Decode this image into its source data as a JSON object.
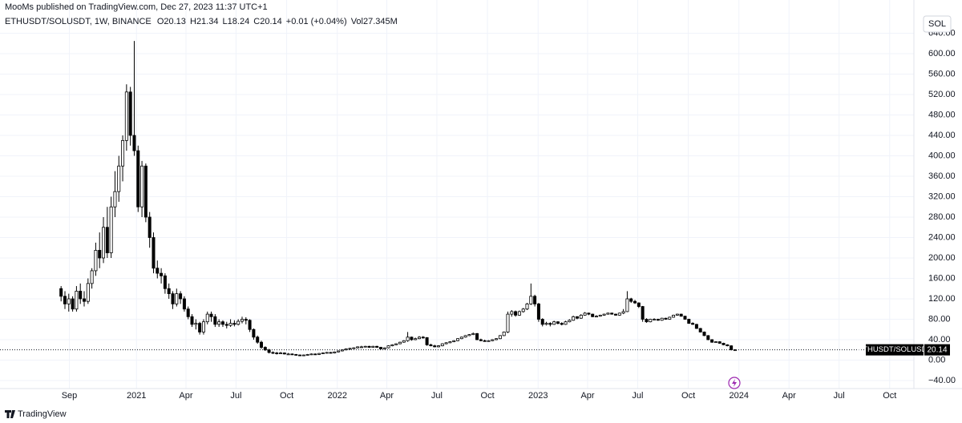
{
  "published": "MooMs published on TradingView.com, Dec 27, 2023 11:37 UTC+1",
  "brand": "TradingView",
  "currency_button": "SOL",
  "header": {
    "symbol_line": "ETHUSDT/SOLUSDT, 1W, BINANCE",
    "o": "O",
    "h": "H",
    "l": "L",
    "c": "C",
    "change": "+0.01 (+0.04%)",
    "vol_label": "Vol",
    "vol": "27.345M",
    "price_tag": "ETHUSDT/SOLUSDT"
  },
  "chart_data": {
    "type": "candlestick",
    "up_color": "#ffffff",
    "down_color": "#000000",
    "border_color": "#000000",
    "grid": true,
    "grid_color": "#f0f3fa",
    "xlim": [
      "2020-04-28",
      "2024-11-14"
    ],
    "xticks": [
      {
        "value": "2020-09-01",
        "label": "Sep"
      },
      {
        "value": "2021-01-01",
        "label": "2021"
      },
      {
        "value": "2021-04-01",
        "label": "Apr"
      },
      {
        "value": "2021-07-01",
        "label": "Jul"
      },
      {
        "value": "2021-10-01",
        "label": "Oct"
      },
      {
        "value": "2022-01-01",
        "label": "2022"
      },
      {
        "value": "2022-04-01",
        "label": "Apr"
      },
      {
        "value": "2022-07-01",
        "label": "Jul"
      },
      {
        "value": "2022-10-01",
        "label": "Oct"
      },
      {
        "value": "2023-01-01",
        "label": "2023"
      },
      {
        "value": "2023-04-01",
        "label": "Apr"
      },
      {
        "value": "2023-07-01",
        "label": "Jul"
      },
      {
        "value": "2023-10-01",
        "label": "Oct"
      },
      {
        "value": "2024-01-01",
        "label": "2024"
      },
      {
        "value": "2024-04-01",
        "label": "Apr"
      },
      {
        "value": "2024-07-01",
        "label": "Jul"
      },
      {
        "value": "2024-10-01",
        "label": "Oct"
      }
    ],
    "ylim": [
      -55.7,
      670.6
    ],
    "yticks": [
      {
        "value": -40,
        "label": "−40.00"
      },
      {
        "value": 0,
        "label": "0.00"
      },
      {
        "value": 40,
        "label": "40.00"
      },
      {
        "value": 80,
        "label": "80.00"
      },
      {
        "value": 120,
        "label": "120.00"
      },
      {
        "value": 160,
        "label": "160.00"
      },
      {
        "value": 200,
        "label": "200.00"
      },
      {
        "value": 240,
        "label": "240.00"
      },
      {
        "value": 280,
        "label": "280.00"
      },
      {
        "value": 320,
        "label": "320.00"
      },
      {
        "value": 360,
        "label": "360.00"
      },
      {
        "value": 400,
        "label": "400.00"
      },
      {
        "value": 440,
        "label": "440.00"
      },
      {
        "value": 480,
        "label": "480.00"
      },
      {
        "value": 520,
        "label": "520.00"
      },
      {
        "value": 560,
        "label": "560.00"
      },
      {
        "value": 600,
        "label": "600.00"
      },
      {
        "value": 640,
        "label": "640.00"
      }
    ],
    "x": [
      "2020-08-17",
      "2020-08-24",
      "2020-08-31",
      "2020-09-07",
      "2020-09-14",
      "2020-09-21",
      "2020-09-28",
      "2020-10-05",
      "2020-10-12",
      "2020-10-19",
      "2020-10-26",
      "2020-11-02",
      "2020-11-09",
      "2020-11-16",
      "2020-11-23",
      "2020-11-30",
      "2020-12-07",
      "2020-12-14",
      "2020-12-21",
      "2020-12-28",
      "2021-01-04",
      "2021-01-11",
      "2021-01-18",
      "2021-01-25",
      "2021-02-01",
      "2021-02-08",
      "2021-02-15",
      "2021-02-22",
      "2021-03-01",
      "2021-03-08",
      "2021-03-15",
      "2021-03-22",
      "2021-03-29",
      "2021-04-05",
      "2021-04-12",
      "2021-04-19",
      "2021-04-26",
      "2021-05-03",
      "2021-05-10",
      "2021-05-17",
      "2021-05-24",
      "2021-05-31",
      "2021-06-07",
      "2021-06-14",
      "2021-06-21",
      "2021-06-28",
      "2021-07-05",
      "2021-07-12",
      "2021-07-19",
      "2021-07-26",
      "2021-08-02",
      "2021-08-09",
      "2021-08-16",
      "2021-08-23",
      "2021-08-30",
      "2021-09-06",
      "2021-09-13",
      "2021-09-20",
      "2021-09-27",
      "2021-10-04",
      "2021-10-11",
      "2021-10-18",
      "2021-10-25",
      "2021-11-01",
      "2021-11-08",
      "2021-11-15",
      "2021-11-22",
      "2021-11-29",
      "2021-12-06",
      "2021-12-13",
      "2021-12-20",
      "2021-12-27",
      "2022-01-03",
      "2022-01-10",
      "2022-01-17",
      "2022-01-24",
      "2022-01-31",
      "2022-02-07",
      "2022-02-14",
      "2022-02-21",
      "2022-02-28",
      "2022-03-07",
      "2022-03-14",
      "2022-03-21",
      "2022-03-28",
      "2022-04-04",
      "2022-04-11",
      "2022-04-18",
      "2022-04-25",
      "2022-05-02",
      "2022-05-09",
      "2022-05-16",
      "2022-05-23",
      "2022-05-30",
      "2022-06-06",
      "2022-06-13",
      "2022-06-20",
      "2022-06-27",
      "2022-07-04",
      "2022-07-11",
      "2022-07-18",
      "2022-07-25",
      "2022-08-01",
      "2022-08-08",
      "2022-08-15",
      "2022-08-22",
      "2022-08-29",
      "2022-09-05",
      "2022-09-12",
      "2022-09-19",
      "2022-09-26",
      "2022-10-03",
      "2022-10-10",
      "2022-10-17",
      "2022-10-24",
      "2022-10-31",
      "2022-11-07",
      "2022-11-14",
      "2022-11-21",
      "2022-11-28",
      "2022-12-05",
      "2022-12-12",
      "2022-12-19",
      "2022-12-26",
      "2023-01-02",
      "2023-01-09",
      "2023-01-16",
      "2023-01-23",
      "2023-01-30",
      "2023-02-06",
      "2023-02-13",
      "2023-02-20",
      "2023-02-27",
      "2023-03-06",
      "2023-03-13",
      "2023-03-20",
      "2023-03-27",
      "2023-04-03",
      "2023-04-10",
      "2023-04-17",
      "2023-04-24",
      "2023-05-01",
      "2023-05-08",
      "2023-05-15",
      "2023-05-22",
      "2023-05-29",
      "2023-06-05",
      "2023-06-12",
      "2023-06-19",
      "2023-06-26",
      "2023-07-03",
      "2023-07-10",
      "2023-07-17",
      "2023-07-24",
      "2023-07-31",
      "2023-08-07",
      "2023-08-14",
      "2023-08-21",
      "2023-08-28",
      "2023-09-04",
      "2023-09-11",
      "2023-09-18",
      "2023-09-25",
      "2023-10-02",
      "2023-10-09",
      "2023-10-16",
      "2023-10-23",
      "2023-10-30",
      "2023-11-06",
      "2023-11-13",
      "2023-11-20",
      "2023-11-27",
      "2023-12-04",
      "2023-12-11",
      "2023-12-18",
      "2023-12-25"
    ],
    "ohlc": [
      [
        140,
        145,
        115,
        125
      ],
      [
        125,
        135,
        100,
        110
      ],
      [
        110,
        130,
        95,
        120
      ],
      [
        120,
        125,
        95,
        100
      ],
      [
        100,
        145,
        95,
        135
      ],
      [
        135,
        150,
        110,
        120
      ],
      [
        120,
        135,
        105,
        115
      ],
      [
        115,
        160,
        110,
        150
      ],
      [
        150,
        180,
        140,
        175
      ],
      [
        175,
        230,
        165,
        215
      ],
      [
        215,
        250,
        180,
        200
      ],
      [
        200,
        280,
        190,
        260
      ],
      [
        260,
        300,
        200,
        210
      ],
      [
        210,
        320,
        200,
        300
      ],
      [
        300,
        370,
        280,
        330
      ],
      [
        330,
        400,
        310,
        380
      ],
      [
        380,
        440,
        350,
        430
      ],
      [
        430,
        540,
        410,
        525
      ],
      [
        525,
        535,
        420,
        440
      ],
      [
        440,
        625,
        400,
        410
      ],
      [
        410,
        420,
        290,
        300
      ],
      [
        300,
        390,
        280,
        380
      ],
      [
        380,
        385,
        270,
        280
      ],
      [
        280,
        290,
        220,
        240
      ],
      [
        240,
        250,
        170,
        180
      ],
      [
        180,
        195,
        160,
        170
      ],
      [
        170,
        180,
        150,
        165
      ],
      [
        165,
        170,
        130,
        140
      ],
      [
        140,
        150,
        120,
        130
      ],
      [
        130,
        135,
        100,
        110
      ],
      [
        110,
        140,
        105,
        130
      ],
      [
        130,
        135,
        110,
        120
      ],
      [
        120,
        125,
        95,
        100
      ],
      [
        100,
        105,
        80,
        85
      ],
      [
        85,
        90,
        65,
        70
      ],
      [
        70,
        80,
        60,
        72
      ],
      [
        72,
        75,
        50,
        55
      ],
      [
        55,
        80,
        50,
        75
      ],
      [
        75,
        95,
        70,
        90
      ],
      [
        90,
        95,
        75,
        85
      ],
      [
        85,
        90,
        65,
        70
      ],
      [
        70,
        80,
        65,
        75
      ],
      [
        75,
        78,
        65,
        70
      ],
      [
        70,
        75,
        62,
        68
      ],
      [
        68,
        80,
        65,
        72
      ],
      [
        72,
        78,
        66,
        70
      ],
      [
        70,
        80,
        68,
        76
      ],
      [
        76,
        85,
        72,
        80
      ],
      [
        80,
        84,
        70,
        78
      ],
      [
        78,
        80,
        55,
        60
      ],
      [
        60,
        62,
        40,
        45
      ],
      [
        45,
        48,
        32,
        35
      ],
      [
        35,
        38,
        22,
        25
      ],
      [
        25,
        27,
        18,
        20
      ],
      [
        20,
        22,
        13,
        15
      ],
      [
        15,
        17,
        12,
        14
      ],
      [
        14,
        16,
        11,
        13
      ],
      [
        13,
        16,
        12,
        14
      ],
      [
        14,
        15,
        11,
        12
      ],
      [
        12,
        14,
        11,
        12
      ],
      [
        12,
        13,
        10,
        11
      ],
      [
        11,
        12,
        9,
        10
      ],
      [
        10,
        11,
        8,
        9
      ],
      [
        9,
        11,
        8,
        10
      ],
      [
        10,
        12,
        9,
        11
      ],
      [
        11,
        13,
        10,
        12
      ],
      [
        12,
        13,
        10,
        11
      ],
      [
        11,
        14,
        10,
        13
      ],
      [
        13,
        15,
        12,
        14
      ],
      [
        14,
        16,
        13,
        15
      ],
      [
        15,
        16,
        13,
        14
      ],
      [
        14,
        17,
        13,
        16
      ],
      [
        16,
        19,
        15,
        18
      ],
      [
        18,
        21,
        17,
        20
      ],
      [
        20,
        23,
        19,
        22
      ],
      [
        22,
        24,
        20,
        23
      ],
      [
        23,
        25,
        22,
        24
      ],
      [
        24,
        27,
        23,
        26
      ],
      [
        26,
        28,
        24,
        26
      ],
      [
        26,
        28,
        25,
        27
      ],
      [
        27,
        28,
        24,
        25
      ],
      [
        25,
        28,
        24,
        27
      ],
      [
        27,
        28,
        24,
        25
      ],
      [
        25,
        26,
        21,
        22
      ],
      [
        22,
        25,
        21,
        24
      ],
      [
        24,
        29,
        23,
        28
      ],
      [
        28,
        31,
        27,
        30
      ],
      [
        30,
        33,
        29,
        32
      ],
      [
        32,
        36,
        31,
        35
      ],
      [
        35,
        39,
        34,
        38
      ],
      [
        38,
        55,
        36,
        45
      ],
      [
        45,
        46,
        38,
        40
      ],
      [
        40,
        44,
        39,
        42
      ],
      [
        42,
        47,
        41,
        45
      ],
      [
        45,
        47,
        42,
        44
      ],
      [
        44,
        45,
        28,
        30
      ],
      [
        30,
        32,
        27,
        28
      ],
      [
        28,
        30,
        25,
        26
      ],
      [
        26,
        29,
        25,
        28
      ],
      [
        28,
        33,
        27,
        32
      ],
      [
        32,
        35,
        31,
        34
      ],
      [
        34,
        37,
        33,
        36
      ],
      [
        36,
        39,
        35,
        38
      ],
      [
        38,
        43,
        37,
        42
      ],
      [
        42,
        46,
        41,
        45
      ],
      [
        45,
        49,
        44,
        48
      ],
      [
        48,
        51,
        47,
        50
      ],
      [
        50,
        54,
        49,
        52
      ],
      [
        52,
        53,
        39,
        40
      ],
      [
        40,
        42,
        37,
        38
      ],
      [
        38,
        40,
        36,
        37
      ],
      [
        37,
        39,
        36,
        38
      ],
      [
        38,
        41,
        37,
        40
      ],
      [
        40,
        43,
        39,
        42
      ],
      [
        42,
        49,
        41,
        48
      ],
      [
        48,
        56,
        47,
        55
      ],
      [
        55,
        95,
        53,
        90
      ],
      [
        90,
        98,
        85,
        95
      ],
      [
        95,
        97,
        85,
        88
      ],
      [
        88,
        97,
        87,
        95
      ],
      [
        95,
        102,
        93,
        100
      ],
      [
        100,
        112,
        98,
        110
      ],
      [
        110,
        150,
        108,
        125
      ],
      [
        125,
        128,
        105,
        110
      ],
      [
        110,
        112,
        75,
        80
      ],
      [
        80,
        82,
        66,
        70
      ],
      [
        70,
        75,
        68,
        72
      ],
      [
        72,
        74,
        66,
        70
      ],
      [
        70,
        77,
        69,
        75
      ],
      [
        75,
        76,
        70,
        72
      ],
      [
        72,
        74,
        68,
        70
      ],
      [
        70,
        77,
        69,
        75
      ],
      [
        75,
        80,
        74,
        78
      ],
      [
        78,
        87,
        77,
        85
      ],
      [
        85,
        86,
        80,
        82
      ],
      [
        82,
        90,
        81,
        88
      ],
      [
        88,
        94,
        87,
        92
      ],
      [
        92,
        93,
        88,
        90
      ],
      [
        90,
        91,
        84,
        85
      ],
      [
        85,
        88,
        84,
        86
      ],
      [
        86,
        89,
        85,
        88
      ],
      [
        88,
        91,
        87,
        90
      ],
      [
        90,
        93,
        89,
        92
      ],
      [
        92,
        93,
        89,
        90
      ],
      [
        90,
        91,
        87,
        88
      ],
      [
        88,
        93,
        87,
        92
      ],
      [
        92,
        100,
        90,
        95
      ],
      [
        95,
        135,
        94,
        120
      ],
      [
        120,
        122,
        112,
        115
      ],
      [
        115,
        118,
        110,
        112
      ],
      [
        112,
        113,
        102,
        105
      ],
      [
        105,
        106,
        75,
        80
      ],
      [
        80,
        82,
        73,
        75
      ],
      [
        75,
        81,
        74,
        80
      ],
      [
        80,
        82,
        78,
        80
      ],
      [
        80,
        81,
        77,
        78
      ],
      [
        78,
        83,
        77,
        82
      ],
      [
        82,
        83,
        79,
        80
      ],
      [
        80,
        85,
        79,
        84
      ],
      [
        84,
        89,
        83,
        88
      ],
      [
        88,
        91,
        87,
        90
      ],
      [
        90,
        91,
        85,
        86
      ],
      [
        86,
        87,
        79,
        80
      ],
      [
        80,
        81,
        71,
        72
      ],
      [
        72,
        74,
        69,
        70
      ],
      [
        70,
        71,
        61,
        62
      ],
      [
        62,
        63,
        54,
        55
      ],
      [
        55,
        56,
        47,
        48
      ],
      [
        48,
        49,
        39,
        40
      ],
      [
        40,
        41,
        34,
        35
      ],
      [
        35,
        37,
        34,
        36
      ],
      [
        36,
        37,
        32,
        33
      ],
      [
        33,
        34,
        29,
        30
      ],
      [
        30,
        31,
        27,
        28
      ],
      [
        28,
        29,
        19,
        20.13
      ],
      [
        20.13,
        21.34,
        18.24,
        20.14
      ]
    ]
  }
}
